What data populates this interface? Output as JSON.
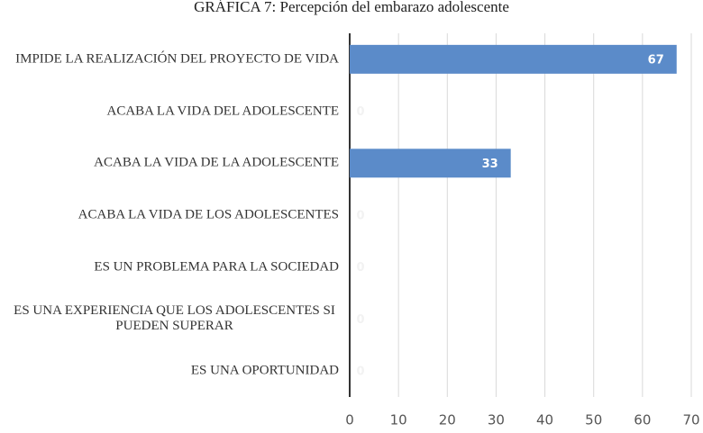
{
  "chart_data": {
    "type": "bar",
    "orientation": "horizontal",
    "title": "GRÁFICA 7: Percepción del embarazo adolescente",
    "categories": [
      "IMPIDE LA REALIZACIÓN DEL PROYECTO DE VIDA",
      "ACABA LA VIDA DEL ADOLESCENTE",
      "ACABA LA VIDA DE LA ADOLESCENTE",
      "ACABA LA VIDA DE LOS ADOLESCENTES",
      "ES UN PROBLEMA PARA LA SOCIEDAD",
      "ES UNA EXPERIENCIA QUE LOS ADOLESCENTES SI PUEDEN SUPERAR",
      "ES UNA OPORTUNIDAD"
    ],
    "values": [
      67,
      0,
      33,
      0,
      0,
      0,
      0
    ],
    "color": "#5b8bc9",
    "xlim": [
      0,
      70
    ],
    "xticks": [
      0,
      10,
      20,
      30,
      40,
      50,
      60,
      70
    ],
    "grid": true
  }
}
